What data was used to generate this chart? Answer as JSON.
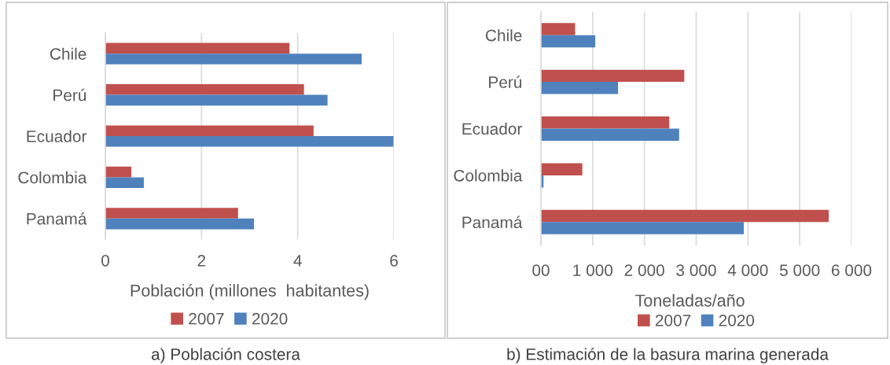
{
  "chart_data": [
    {
      "type": "bar",
      "orientation": "horizontal",
      "title": "a) Población costera",
      "xlabel": "Población (millones  habitantes)",
      "categories": [
        "Chile",
        "Perú",
        "Ecuador",
        "Colombia",
        "Panamá"
      ],
      "series": [
        {
          "name": "2007",
          "color": "#c0504d",
          "values": [
            3.83,
            4.13,
            4.33,
            0.54,
            2.76
          ]
        },
        {
          "name": "2020",
          "color": "#4f81bd",
          "values": [
            5.33,
            4.62,
            5.99,
            0.8,
            3.09
          ]
        }
      ],
      "xlim": [
        0,
        6
      ],
      "xticks": [
        0,
        2,
        4,
        6
      ],
      "grid": "x",
      "legend": "bottom"
    },
    {
      "type": "bar",
      "orientation": "horizontal",
      "title": "b) Estimación de la basura marina generada",
      "xlabel": "Toneladas/año",
      "categories": [
        "Chile",
        "Perú",
        "Ecuador",
        "Colombia",
        "Panamá"
      ],
      "series": [
        {
          "name": "2007",
          "color": "#c0504d",
          "values": [
            660,
            2770,
            2480,
            800,
            5560
          ]
        },
        {
          "name": "2020",
          "color": "#4f81bd",
          "values": [
            1050,
            1490,
            2670,
            50,
            3920
          ]
        }
      ],
      "xlim": [
        0,
        6000
      ],
      "xticks": [
        {
          "value": 0,
          "label": "00"
        },
        {
          "value": 1000,
          "label": "1 000"
        },
        {
          "value": 2000,
          "label": "2 000"
        },
        {
          "value": 3000,
          "label": "3 000"
        },
        {
          "value": 4000,
          "label": "4 000"
        },
        {
          "value": 5000,
          "label": "5 000"
        },
        {
          "value": 6000,
          "label": "6 000"
        }
      ],
      "grid": "x",
      "legend": "bottom"
    }
  ]
}
